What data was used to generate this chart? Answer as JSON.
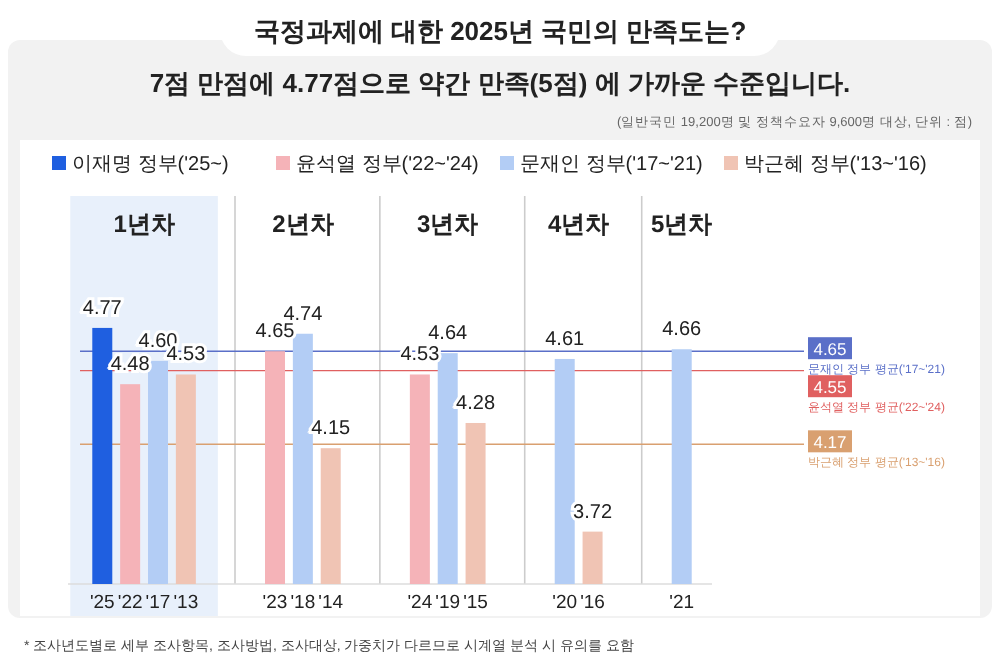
{
  "chart_data": {
    "type": "bar",
    "title": "국정과제에 대한 2025년 국민의 만족도는?",
    "subtitle": "7점 만점에 4.77점으로 약간 만족(5점) 에 가까운 수준입니다.",
    "categories": [
      "'25",
      "'22",
      "'17",
      "'13",
      "'23",
      "'18",
      "'14",
      "'24",
      "'19",
      "'15",
      "'20",
      "'16",
      "'21"
    ],
    "series": [
      {
        "name": "이재명 정부('25~)",
        "color": "#1f5fe0",
        "values": [
          4.77,
          null,
          null,
          null,
          null,
          null,
          null,
          null,
          null,
          null,
          null,
          null,
          null
        ],
        "value_labels": [
          "4.77",
          null,
          null,
          null,
          null,
          null,
          null,
          null,
          null,
          null,
          null,
          null,
          null
        ]
      },
      {
        "name": "윤석열 정부('22~'24)",
        "color": "#f5b3b8",
        "values": [
          null,
          4.48,
          null,
          null,
          4.65,
          null,
          null,
          4.53,
          null,
          null,
          null,
          null,
          null
        ],
        "value_labels": [
          null,
          "4.48",
          null,
          null,
          "4.65",
          null,
          null,
          "4.53",
          null,
          null,
          null,
          null,
          null
        ]
      },
      {
        "name": "문재인 정부('17~'21)",
        "color": "#b3cdf5",
        "values": [
          null,
          null,
          4.6,
          null,
          null,
          4.74,
          null,
          null,
          4.64,
          null,
          4.61,
          null,
          4.66
        ],
        "value_labels": [
          null,
          null,
          "4.60",
          null,
          null,
          "4.74",
          null,
          null,
          "4.64",
          null,
          "4.61",
          null,
          "4.66"
        ]
      },
      {
        "name": "박근혜 정부('13~'16)",
        "color": "#f0c4b4",
        "values": [
          null,
          null,
          null,
          4.53,
          null,
          null,
          4.15,
          null,
          null,
          4.28,
          null,
          3.72,
          null
        ],
        "value_labels": [
          null,
          null,
          null,
          "4.53",
          null,
          null,
          "4.15",
          null,
          null,
          "4.28",
          null,
          "3.72",
          null
        ]
      }
    ],
    "ylim": [
      3.45,
      5.45
    ],
    "tick_labels": "x",
    "legend": "top",
    "ref_lines": [
      {
        "axis": "y",
        "value": 4.65,
        "label": "4.65",
        "color": "#5a6fc8"
      },
      {
        "axis": "y",
        "value": 4.55,
        "label": "4.55",
        "color": "#e06060"
      },
      {
        "axis": "y",
        "value": 4.17,
        "label": "4.17",
        "color": "#d9a070"
      }
    ],
    "annotations": [
      "(일반국민 19,200명 및 정책수요자 9,600명 대상, 단위 : 점)",
      "* 조사년도별로 세부 조사항목, 조사방법, 조사대상, 가중치가 다르므로 시계열 분석 시 유의를 요함",
      "1년차",
      "2년차",
      "3년차",
      "4년차",
      "5년차",
      "문재인 정부 평균('17~'21)",
      "윤석열 정부 평균('22~'24)",
      "박근혜 정부 평균('13~'16)"
    ]
  }
}
